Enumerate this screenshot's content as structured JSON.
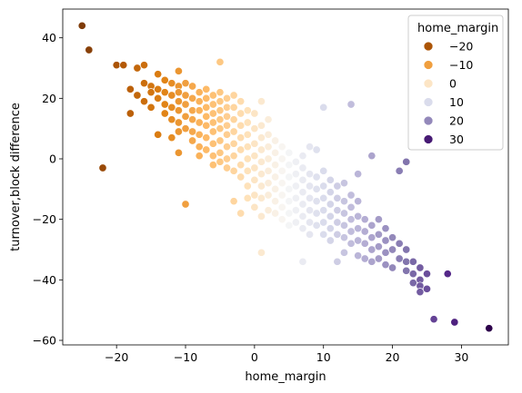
{
  "chart_data": {
    "type": "scatter",
    "title": "",
    "xlabel": "home_margin",
    "ylabel": "turnover,block difference",
    "xlim": [
      -27.8,
      36.8
    ],
    "ylim": [
      -61.5,
      49.5
    ],
    "xticks": [
      -20,
      -10,
      0,
      10,
      20,
      30
    ],
    "yticks": [
      -60,
      -40,
      -20,
      0,
      20,
      40
    ],
    "grid": false,
    "legend": {
      "title": "home_margin",
      "placement": "top-right",
      "entries": [
        {
          "label": "−20",
          "value": -20
        },
        {
          "label": "−10",
          "value": -10
        },
        {
          "label": "0",
          "value": 0
        },
        {
          "label": "10",
          "value": 10
        },
        {
          "label": "20",
          "value": 20
        },
        {
          "label": "30",
          "value": 30
        }
      ]
    },
    "color_scale": {
      "name": "PuOr",
      "domain": [
        -25,
        34
      ],
      "stops": [
        "#7f3b08",
        "#b35806",
        "#e08214",
        "#fdb863",
        "#fee0b6",
        "#f7f7f7",
        "#d8daeb",
        "#b2abd2",
        "#8073ac",
        "#542788",
        "#2d004b"
      ]
    },
    "points": [
      [
        -25,
        44
      ],
      [
        -24,
        36
      ],
      [
        -22,
        -3
      ],
      [
        -20,
        31
      ],
      [
        -19,
        31
      ],
      [
        -18,
        23
      ],
      [
        -18,
        15
      ],
      [
        -17,
        30
      ],
      [
        -17,
        21
      ],
      [
        -16,
        31
      ],
      [
        -16,
        25
      ],
      [
        -16,
        19
      ],
      [
        -15,
        24
      ],
      [
        -15,
        17
      ],
      [
        -15,
        22
      ],
      [
        -14,
        28
      ],
      [
        -14,
        23
      ],
      [
        -14,
        20
      ],
      [
        -14,
        8
      ],
      [
        -13,
        26
      ],
      [
        -13,
        22
      ],
      [
        -13,
        18
      ],
      [
        -13,
        15
      ],
      [
        -12,
        25
      ],
      [
        -12,
        21
      ],
      [
        -12,
        17
      ],
      [
        -12,
        13
      ],
      [
        -12,
        7
      ],
      [
        -11,
        29
      ],
      [
        -11,
        24
      ],
      [
        -11,
        22
      ],
      [
        -11,
        19
      ],
      [
        -11,
        16
      ],
      [
        -11,
        12
      ],
      [
        -11,
        9
      ],
      [
        -11,
        2
      ],
      [
        -10,
        25
      ],
      [
        -10,
        21
      ],
      [
        -10,
        18
      ],
      [
        -10,
        14
      ],
      [
        -10,
        10
      ],
      [
        -10,
        -15
      ],
      [
        -9,
        24
      ],
      [
        -9,
        20
      ],
      [
        -9,
        16
      ],
      [
        -9,
        13
      ],
      [
        -9,
        9
      ],
      [
        -9,
        6
      ],
      [
        -8,
        22
      ],
      [
        -8,
        19
      ],
      [
        -8,
        16
      ],
      [
        -8,
        12
      ],
      [
        -8,
        8
      ],
      [
        -8,
        4
      ],
      [
        -8,
        1
      ],
      [
        -7,
        23
      ],
      [
        -7,
        20
      ],
      [
        -7,
        17
      ],
      [
        -7,
        14
      ],
      [
        -7,
        11
      ],
      [
        -7,
        7
      ],
      [
        -7,
        3
      ],
      [
        -6,
        21
      ],
      [
        -6,
        18
      ],
      [
        -6,
        15
      ],
      [
        -6,
        12
      ],
      [
        -6,
        9
      ],
      [
        -6,
        5
      ],
      [
        -6,
        1
      ],
      [
        -6,
        -2
      ],
      [
        -5,
        32
      ],
      [
        -5,
        22
      ],
      [
        -5,
        19
      ],
      [
        -5,
        16
      ],
      [
        -5,
        13
      ],
      [
        -5,
        10
      ],
      [
        -5,
        6
      ],
      [
        -5,
        2
      ],
      [
        -5,
        -1
      ],
      [
        -4,
        20
      ],
      [
        -4,
        17
      ],
      [
        -4,
        14
      ],
      [
        -4,
        11
      ],
      [
        -4,
        8
      ],
      [
        -4,
        4
      ],
      [
        -4,
        0
      ],
      [
        -4,
        -3
      ],
      [
        -3,
        21
      ],
      [
        -3,
        17
      ],
      [
        -3,
        13
      ],
      [
        -3,
        9
      ],
      [
        -3,
        5
      ],
      [
        -3,
        1
      ],
      [
        -3,
        -4
      ],
      [
        -3,
        -14
      ],
      [
        -2,
        19
      ],
      [
        -2,
        15
      ],
      [
        -2,
        11
      ],
      [
        -2,
        7
      ],
      [
        -2,
        3
      ],
      [
        -2,
        -2
      ],
      [
        -2,
        -6
      ],
      [
        -2,
        -18
      ],
      [
        -1,
        16
      ],
      [
        -1,
        12
      ],
      [
        -1,
        8
      ],
      [
        -1,
        4
      ],
      [
        -1,
        0
      ],
      [
        -1,
        -4
      ],
      [
        -1,
        -9
      ],
      [
        -1,
        -13
      ],
      [
        0,
        15
      ],
      [
        0,
        10
      ],
      [
        0,
        5
      ],
      [
        0,
        1
      ],
      [
        0,
        -3
      ],
      [
        0,
        -7
      ],
      [
        0,
        -12
      ],
      [
        0,
        -16
      ],
      [
        1,
        19
      ],
      [
        1,
        11
      ],
      [
        1,
        7
      ],
      [
        1,
        3
      ],
      [
        1,
        -1
      ],
      [
        1,
        -5
      ],
      [
        1,
        -9
      ],
      [
        1,
        -13
      ],
      [
        1,
        -19
      ],
      [
        1,
        -31
      ],
      [
        2,
        13
      ],
      [
        2,
        8
      ],
      [
        2,
        4
      ],
      [
        2,
        0
      ],
      [
        2,
        -4
      ],
      [
        2,
        -8
      ],
      [
        2,
        -12
      ],
      [
        2,
        -17
      ],
      [
        3,
        6
      ],
      [
        3,
        2
      ],
      [
        3,
        -2
      ],
      [
        3,
        -6
      ],
      [
        3,
        -10
      ],
      [
        3,
        -14
      ],
      [
        3,
        -18
      ],
      [
        4,
        4
      ],
      [
        4,
        0
      ],
      [
        4,
        -4
      ],
      [
        4,
        -8
      ],
      [
        4,
        -12
      ],
      [
        4,
        -16
      ],
      [
        4,
        -20
      ],
      [
        5,
        2
      ],
      [
        5,
        -2
      ],
      [
        5,
        -6
      ],
      [
        5,
        -10
      ],
      [
        5,
        -14
      ],
      [
        5,
        -18
      ],
      [
        5,
        -22
      ],
      [
        6,
        -1
      ],
      [
        6,
        -5
      ],
      [
        6,
        -9
      ],
      [
        6,
        -13
      ],
      [
        6,
        -17
      ],
      [
        6,
        -21
      ],
      [
        7,
        1
      ],
      [
        7,
        -3
      ],
      [
        7,
        -7
      ],
      [
        7,
        -11
      ],
      [
        7,
        -15
      ],
      [
        7,
        -19
      ],
      [
        7,
        -23
      ],
      [
        7,
        -34
      ],
      [
        8,
        4
      ],
      [
        8,
        -5
      ],
      [
        8,
        -9
      ],
      [
        8,
        -13
      ],
      [
        8,
        -17
      ],
      [
        8,
        -21
      ],
      [
        8,
        -25
      ],
      [
        9,
        3
      ],
      [
        9,
        -6
      ],
      [
        9,
        -10
      ],
      [
        9,
        -14
      ],
      [
        9,
        -18
      ],
      [
        9,
        -22
      ],
      [
        10,
        17
      ],
      [
        10,
        -4
      ],
      [
        10,
        -9
      ],
      [
        10,
        -13
      ],
      [
        10,
        -17
      ],
      [
        10,
        -21
      ],
      [
        10,
        -25
      ],
      [
        11,
        -7
      ],
      [
        11,
        -11
      ],
      [
        11,
        -15
      ],
      [
        11,
        -19
      ],
      [
        11,
        -23
      ],
      [
        11,
        -27
      ],
      [
        12,
        -9
      ],
      [
        12,
        -13
      ],
      [
        12,
        -17
      ],
      [
        12,
        -21
      ],
      [
        12,
        -25
      ],
      [
        12,
        -34
      ],
      [
        13,
        -8
      ],
      [
        13,
        -14
      ],
      [
        13,
        -18
      ],
      [
        13,
        -22
      ],
      [
        13,
        -26
      ],
      [
        13,
        -31
      ],
      [
        14,
        18
      ],
      [
        14,
        -12
      ],
      [
        14,
        -16
      ],
      [
        14,
        -20
      ],
      [
        14,
        -24
      ],
      [
        14,
        -28
      ],
      [
        15,
        -5
      ],
      [
        15,
        -14
      ],
      [
        15,
        -19
      ],
      [
        15,
        -23
      ],
      [
        15,
        -27
      ],
      [
        15,
        -32
      ],
      [
        16,
        -20
      ],
      [
        16,
        -24
      ],
      [
        16,
        -28
      ],
      [
        16,
        -33
      ],
      [
        17,
        1
      ],
      [
        17,
        -22
      ],
      [
        17,
        -26
      ],
      [
        17,
        -30
      ],
      [
        17,
        -34
      ],
      [
        18,
        -20
      ],
      [
        18,
        -25
      ],
      [
        18,
        -29
      ],
      [
        18,
        -33
      ],
      [
        19,
        -23
      ],
      [
        19,
        -27
      ],
      [
        19,
        -31
      ],
      [
        19,
        -35
      ],
      [
        20,
        -26
      ],
      [
        20,
        -30
      ],
      [
        20,
        -36
      ],
      [
        21,
        -4
      ],
      [
        21,
        -28
      ],
      [
        21,
        -33
      ],
      [
        22,
        -1
      ],
      [
        22,
        -30
      ],
      [
        22,
        -34
      ],
      [
        22,
        -37
      ],
      [
        23,
        -34
      ],
      [
        23,
        -38
      ],
      [
        23,
        -41
      ],
      [
        24,
        -36
      ],
      [
        24,
        -40
      ],
      [
        24,
        -42
      ],
      [
        24,
        -44
      ],
      [
        25,
        -38
      ],
      [
        25,
        -43
      ],
      [
        26,
        -53
      ],
      [
        28,
        -38
      ],
      [
        29,
        -54
      ],
      [
        34,
        -56
      ]
    ]
  }
}
